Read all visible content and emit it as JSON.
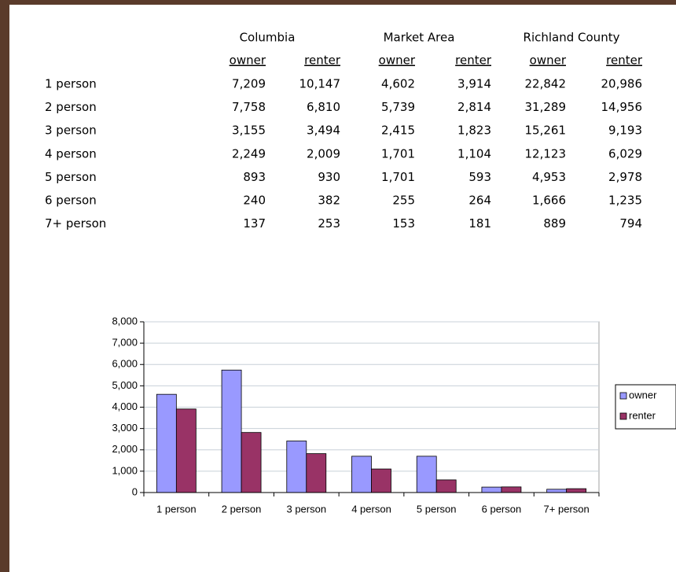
{
  "table": {
    "groups": [
      "Columbia",
      "Market Area",
      "Richland County"
    ],
    "subheaders": [
      "owner",
      "renter",
      "owner",
      "renter",
      "owner",
      "renter"
    ],
    "rows": [
      [
        "1 person",
        "7,209",
        "10,147",
        "4,602",
        "3,914",
        "22,842",
        "20,986"
      ],
      [
        "2 person",
        "7,758",
        "6,810",
        "5,739",
        "2,814",
        "31,289",
        "14,956"
      ],
      [
        "3 person",
        "3,155",
        "3,494",
        "2,415",
        "1,823",
        "15,261",
        "9,193"
      ],
      [
        "4 person",
        "2,249",
        "2,009",
        "1,701",
        "1,104",
        "12,123",
        "6,029"
      ],
      [
        "5 person",
        "893",
        "930",
        "1,701",
        "593",
        "4,953",
        "2,978"
      ],
      [
        "6 person",
        "240",
        "382",
        "255",
        "264",
        "1,666",
        "1,235"
      ],
      [
        "7+ person",
        "137",
        "253",
        "153",
        "181",
        "889",
        "794"
      ]
    ]
  },
  "chart_data": {
    "type": "bar",
    "categories": [
      "1 person",
      "2 person",
      "3 person",
      "4 person",
      "5 person",
      "6 person",
      "7+ person"
    ],
    "series": [
      {
        "name": "owner",
        "color": "#9999ff",
        "values": [
          4602,
          5739,
          2415,
          1701,
          1701,
          255,
          153
        ]
      },
      {
        "name": "renter",
        "color": "#993366",
        "values": [
          3914,
          2814,
          1823,
          1104,
          593,
          264,
          181
        ]
      }
    ],
    "ylim": [
      0,
      8000
    ],
    "yticks": [
      0,
      {
        "value": 1000,
        "label": "1,000"
      },
      {
        "value": 2000,
        "label": "2,000"
      },
      {
        "value": 3000,
        "label": "3,000"
      },
      {
        "value": 4000,
        "label": "4,000"
      },
      {
        "value": 5000,
        "label": "5,000"
      },
      {
        "value": 6000,
        "label": "6,000"
      },
      {
        "value": 7000,
        "label": "7,000"
      },
      {
        "value": 8000,
        "label": "8,000"
      }
    ],
    "grid": true,
    "legend": "right"
  }
}
